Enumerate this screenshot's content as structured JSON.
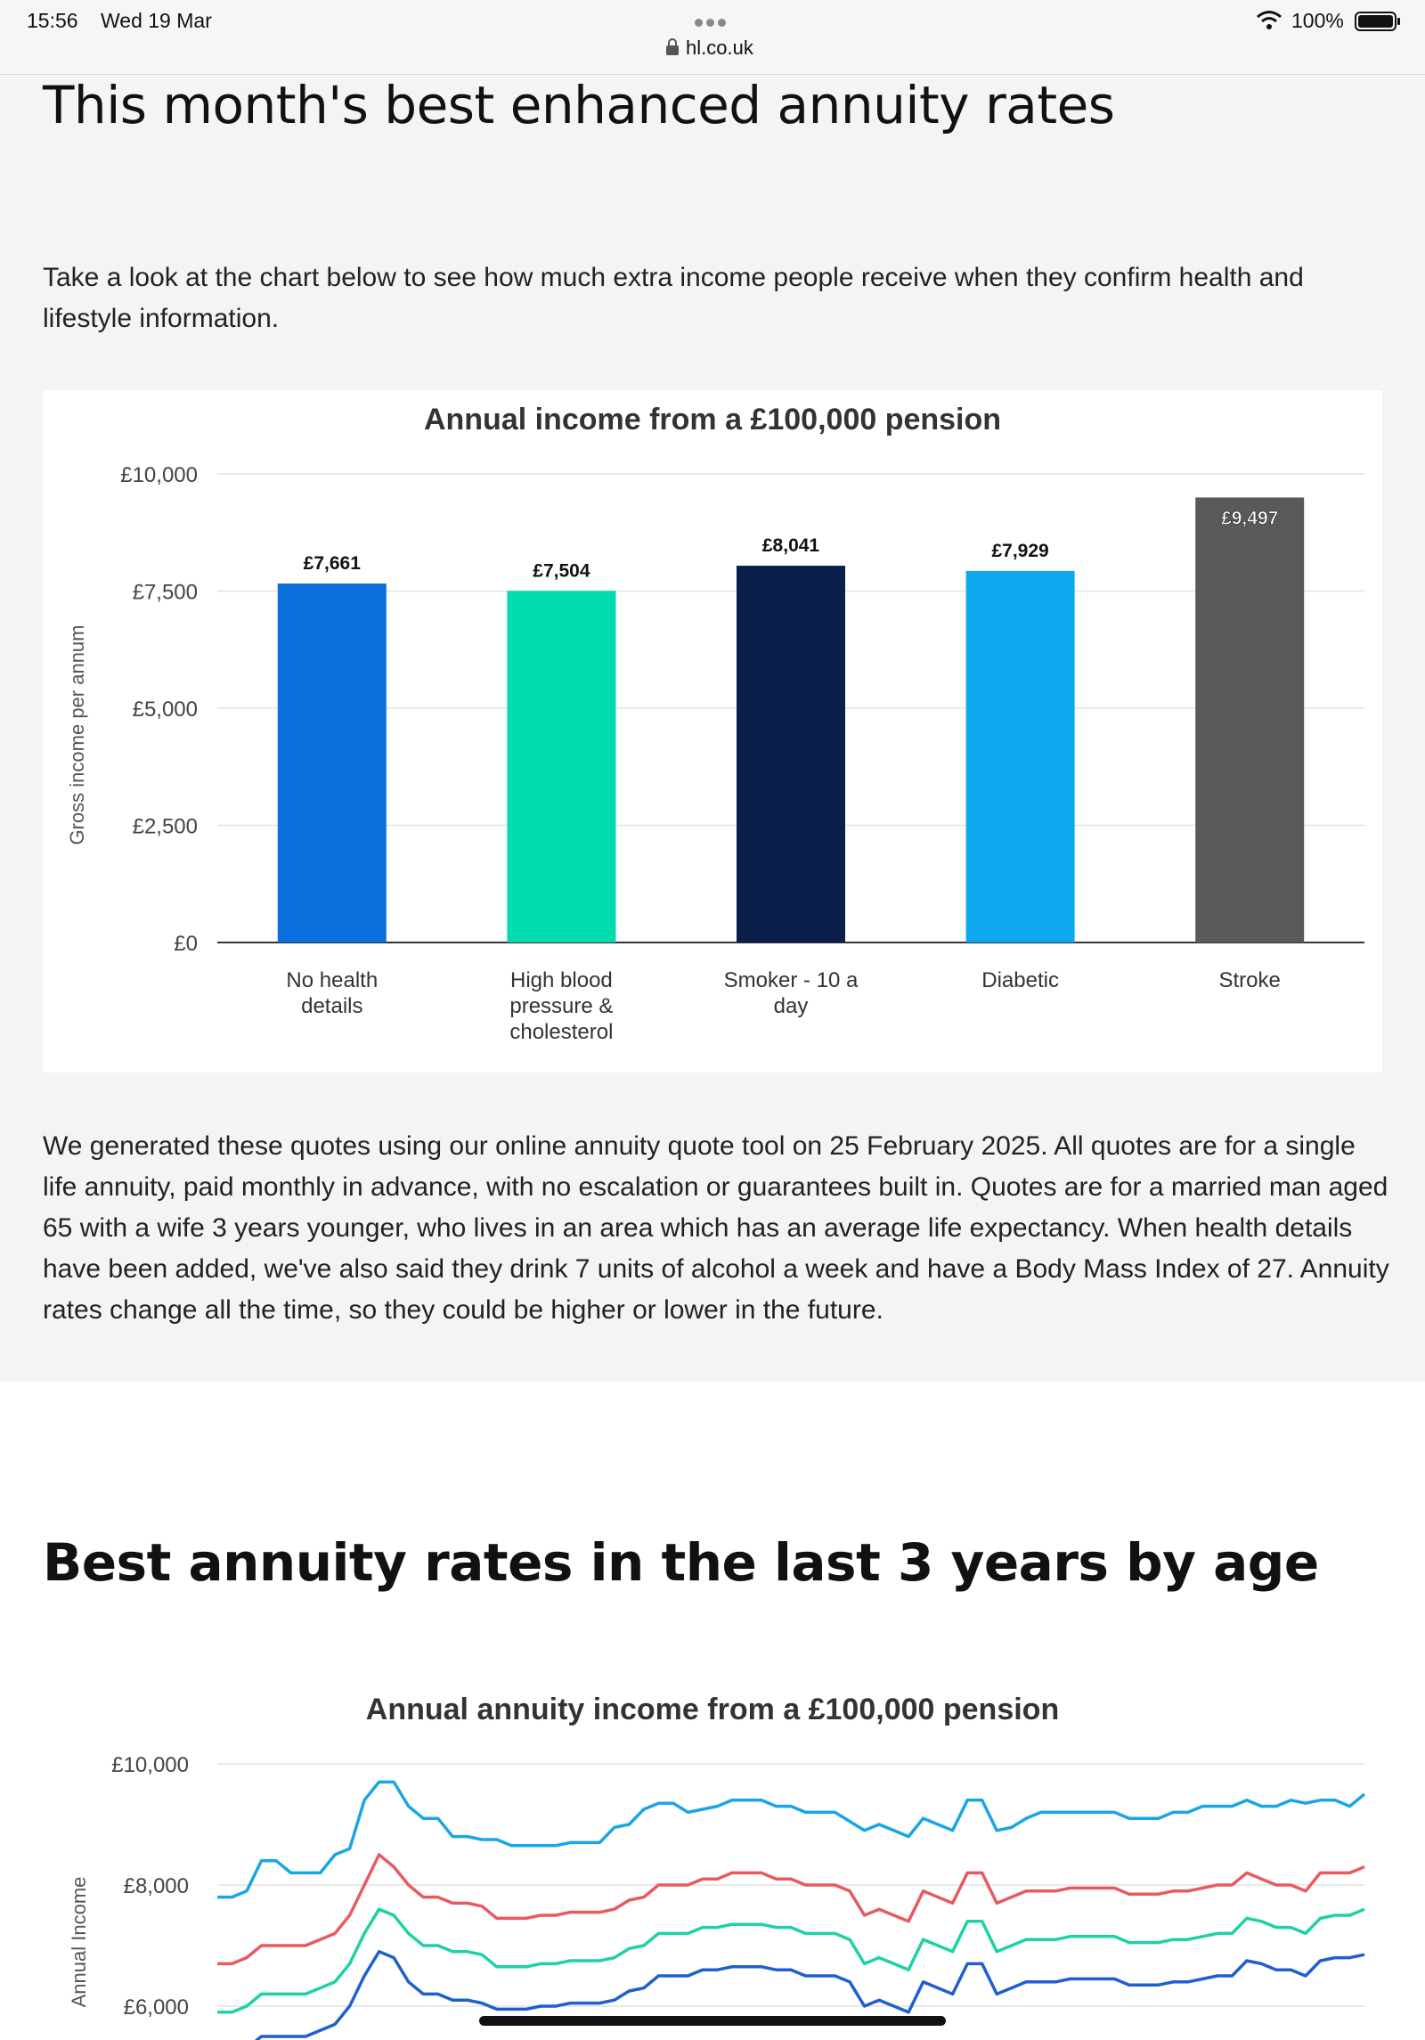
{
  "status_bar": {
    "time": "15:56",
    "date": "Wed 19 Mar",
    "url": "hl.co.uk",
    "battery": "100%"
  },
  "section1": {
    "heading": "This month's best enhanced annuity rates",
    "intro": "Take a look at the chart below to see how much extra income people receive when they confirm health and lifestyle information.",
    "note": "We generated these quotes using our online annuity quote tool on 25 February 2025. All quotes are for a single life annuity, paid monthly in advance, with no escalation or guarantees built in. Quotes are for a married man aged 65 with a wife 3 years younger, who lives in an area which has an average life expectancy. When health details have been added, we've also said they drink 7 units of alcohol a week and have a Body Mass Index of 27. Annuity rates change all the time, so they could be higher or lower in the future."
  },
  "section2": {
    "heading": "Best annuity rates in the last 3 years by age"
  },
  "chart_data": [
    {
      "type": "bar",
      "title": "Annual income from a £100,000 pension",
      "ylabel": "Gross income per annum",
      "ylim": [
        0,
        10000
      ],
      "yticks": [
        "£0",
        "£2,500",
        "£5,000",
        "£7,500",
        "£10,000"
      ],
      "ytick_values": [
        0,
        2500,
        5000,
        7500,
        10000
      ],
      "categories": [
        [
          "No health",
          "details"
        ],
        [
          "High blood",
          "pressure &",
          "cholesterol"
        ],
        [
          "Smoker - 10 a",
          "day"
        ],
        [
          "Diabetic"
        ],
        [
          "Stroke"
        ]
      ],
      "values": [
        7661,
        7504,
        8041,
        7929,
        9497
      ],
      "data_labels": [
        "£7,661",
        "£7,504",
        "£8,041",
        "£7,929",
        "£9,497"
      ],
      "colors": [
        "#0b6fde",
        "#00dbb0",
        "#0a1f4a",
        "#0ea8f0",
        "#595959"
      ],
      "grid": true
    },
    {
      "type": "line",
      "title": "Annual annuity income from a £100,000 pension",
      "ylabel": "Annual Income",
      "ylim": [
        5500,
        10000
      ],
      "yticks": [
        "£6,000",
        "£8,000",
        "£10,000"
      ],
      "ytick_values": [
        6000,
        8000,
        10000
      ],
      "grid": true,
      "series": [
        {
          "color": "#1aa6e6",
          "values": [
            7800,
            7800,
            7900,
            8400,
            8400,
            8200,
            8200,
            8200,
            8500,
            8600,
            9400,
            9700,
            9700,
            9300,
            9100,
            9100,
            8800,
            8800,
            8750,
            8750,
            8650,
            8650,
            8650,
            8650,
            8700,
            8700,
            8700,
            8950,
            9000,
            9250,
            9350,
            9350,
            9200,
            9250,
            9300,
            9400,
            9400,
            9400,
            9300,
            9300,
            9200,
            9200,
            9200,
            9050,
            8900,
            9000,
            8900,
            8800,
            9100,
            9000,
            8900,
            9400,
            9400,
            8900,
            8950,
            9100,
            9200,
            9200,
            9200,
            9200,
            9200,
            9200,
            9100,
            9100,
            9100,
            9200,
            9200,
            9300,
            9300,
            9300,
            9400,
            9300,
            9300,
            9400,
            9350,
            9400,
            9400,
            9300,
            9500
          ]
        },
        {
          "color": "#e85a60",
          "values": [
            6700,
            6700,
            6800,
            7000,
            7000,
            7000,
            7000,
            7100,
            7200,
            7500,
            8000,
            8500,
            8300,
            8000,
            7800,
            7800,
            7700,
            7700,
            7650,
            7450,
            7450,
            7450,
            7500,
            7500,
            7550,
            7550,
            7550,
            7600,
            7750,
            7800,
            8000,
            8000,
            8000,
            8100,
            8100,
            8200,
            8200,
            8200,
            8100,
            8100,
            8000,
            8000,
            8000,
            7900,
            7500,
            7600,
            7500,
            7400,
            7900,
            7800,
            7700,
            8200,
            8200,
            7700,
            7800,
            7900,
            7900,
            7900,
            7950,
            7950,
            7950,
            7950,
            7850,
            7850,
            7850,
            7900,
            7900,
            7950,
            8000,
            8000,
            8200,
            8100,
            8000,
            8000,
            7900,
            8200,
            8200,
            8200,
            8300
          ]
        },
        {
          "color": "#1fd1a6",
          "values": [
            5900,
            5900,
            6000,
            6200,
            6200,
            6200,
            6200,
            6300,
            6400,
            6700,
            7200,
            7600,
            7500,
            7200,
            7000,
            7000,
            6900,
            6900,
            6850,
            6650,
            6650,
            6650,
            6700,
            6700,
            6750,
            6750,
            6750,
            6800,
            6950,
            7000,
            7200,
            7200,
            7200,
            7300,
            7300,
            7350,
            7350,
            7350,
            7300,
            7300,
            7200,
            7200,
            7200,
            7100,
            6700,
            6800,
            6700,
            6600,
            7100,
            7000,
            6900,
            7400,
            7400,
            6900,
            7000,
            7100,
            7100,
            7100,
            7150,
            7150,
            7150,
            7150,
            7050,
            7050,
            7050,
            7100,
            7100,
            7150,
            7200,
            7200,
            7450,
            7400,
            7300,
            7300,
            7200,
            7450,
            7500,
            7500,
            7600
          ]
        },
        {
          "color": "#1f5fd0",
          "values": [
            5200,
            5200,
            5300,
            5500,
            5500,
            5500,
            5500,
            5600,
            5700,
            6000,
            6500,
            6900,
            6800,
            6400,
            6200,
            6200,
            6100,
            6100,
            6050,
            5950,
            5950,
            5950,
            6000,
            6000,
            6050,
            6050,
            6050,
            6100,
            6250,
            6300,
            6500,
            6500,
            6500,
            6600,
            6600,
            6650,
            6650,
            6650,
            6600,
            6600,
            6500,
            6500,
            6500,
            6400,
            6000,
            6100,
            6000,
            5900,
            6400,
            6300,
            6200,
            6700,
            6700,
            6200,
            6300,
            6400,
            6400,
            6400,
            6450,
            6450,
            6450,
            6450,
            6350,
            6350,
            6350,
            6400,
            6400,
            6450,
            6500,
            6500,
            6750,
            6700,
            6600,
            6600,
            6500,
            6750,
            6800,
            6800,
            6850
          ]
        }
      ]
    }
  ]
}
